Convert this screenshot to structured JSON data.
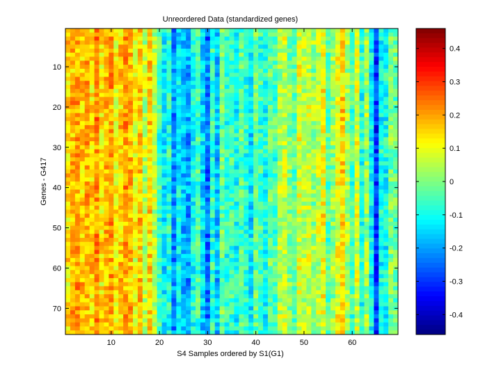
{
  "chart_data": {
    "type": "heatmap",
    "title": "Unreordered Data (standardized genes)",
    "xlabel": "S4 Samples ordered by S1(G1)",
    "ylabel": "Genes - G417",
    "n_columns": 69,
    "n_rows": 76,
    "x_range": [
      0.5,
      69.5
    ],
    "y_range": [
      0.5,
      76.5
    ],
    "x_ticks": [
      10,
      20,
      30,
      40,
      50,
      60
    ],
    "y_ticks": [
      10,
      20,
      30,
      40,
      50,
      60,
      70
    ],
    "colorbar": {
      "min": -0.46,
      "max": 0.46,
      "ticks": [
        0.4,
        0.3,
        0.2,
        0.1,
        0,
        -0.1,
        -0.2,
        -0.3,
        -0.4
      ],
      "colormap": "jet"
    },
    "column_means": [
      0.14,
      0.18,
      0.2,
      0.16,
      0.19,
      0.15,
      0.22,
      0.13,
      0.17,
      0.21,
      0.12,
      0.16,
      0.2,
      0.18,
      0.1,
      0.17,
      0.06,
      0.15,
      0.05,
      -0.06,
      -0.13,
      -0.08,
      -0.22,
      -0.12,
      -0.17,
      -0.2,
      -0.1,
      -0.05,
      -0.15,
      -0.24,
      -0.08,
      -0.18,
      -0.02,
      -0.08,
      -0.06,
      -0.1,
      -0.04,
      -0.07,
      -0.14,
      -0.02,
      -0.06,
      -0.1,
      -0.03,
      -0.05,
      0.04,
      0.06,
      0.0,
      -0.03,
      0.08,
      0.05,
      0.07,
      0.02,
      0.06,
      0.11,
      -0.04,
      0.02,
      0.1,
      0.15,
      0.04,
      -0.05,
      0.08,
      -0.08,
      0.03,
      -0.12,
      -0.3,
      -0.1,
      -0.1,
      0.0,
      -0.02
    ]
  }
}
